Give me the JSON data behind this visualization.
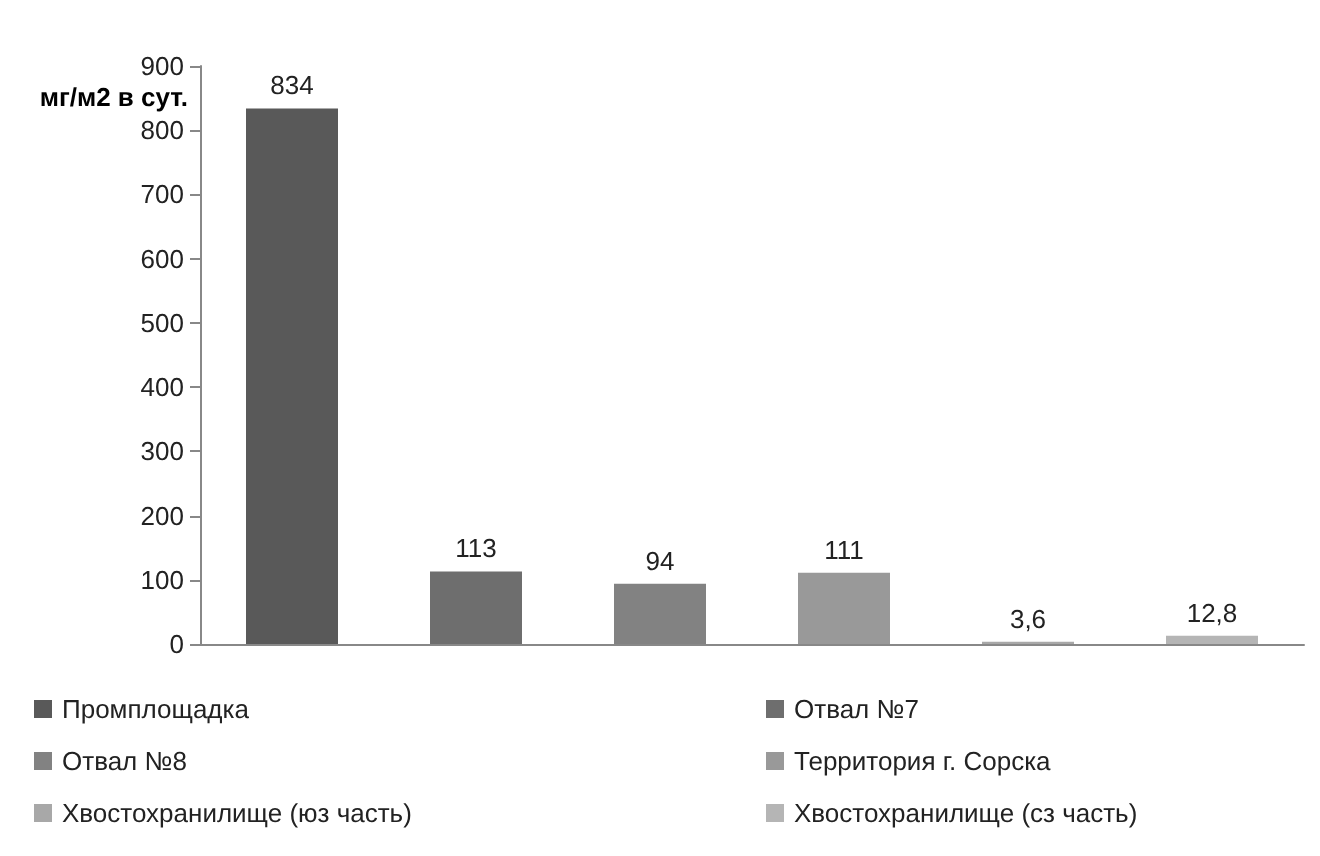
{
  "chart_data": {
    "type": "bar",
    "ylabel": "мг/м2 в сут.",
    "categories": [
      null,
      null,
      null,
      null,
      null,
      null
    ],
    "stacked": true,
    "ylim": [
      0,
      900
    ],
    "yticks": [
      0,
      100,
      200,
      300,
      400,
      500,
      600,
      700,
      800,
      900
    ],
    "grid": false,
    "legend": "bottom",
    "series": [
      {
        "name": "Промплощадка",
        "color": "#595959",
        "values": [
          834,
          null,
          null,
          null,
          null,
          null
        ],
        "value_labels": [
          "834",
          null,
          null,
          null,
          null,
          null
        ]
      },
      {
        "name": "Отвал №7",
        "color": "#6e6e6e",
        "values": [
          null,
          113,
          null,
          null,
          null,
          null
        ],
        "value_labels": [
          null,
          "113",
          null,
          null,
          null,
          null
        ]
      },
      {
        "name": "Отвал №8",
        "color": "#828282",
        "values": [
          null,
          null,
          94,
          null,
          null,
          null
        ],
        "value_labels": [
          null,
          null,
          "94",
          null,
          null,
          null
        ]
      },
      {
        "name": "Территория г. Сорска",
        "color": "#999999",
        "values": [
          null,
          null,
          null,
          111,
          null,
          null
        ],
        "value_labels": [
          null,
          null,
          null,
          "111",
          null,
          null
        ]
      },
      {
        "name": "Хвостохранилище (юз часть)",
        "color": "#a8a8a8",
        "values": [
          null,
          null,
          null,
          null,
          3.6,
          null
        ],
        "value_labels": [
          null,
          null,
          null,
          null,
          "3,6",
          null
        ]
      },
      {
        "name": "Хвостохранилище (сз часть)",
        "color": "#b5b5b5",
        "values": [
          null,
          null,
          null,
          null,
          null,
          12.8
        ],
        "value_labels": [
          null,
          null,
          null,
          null,
          null,
          "12,8"
        ]
      }
    ]
  }
}
